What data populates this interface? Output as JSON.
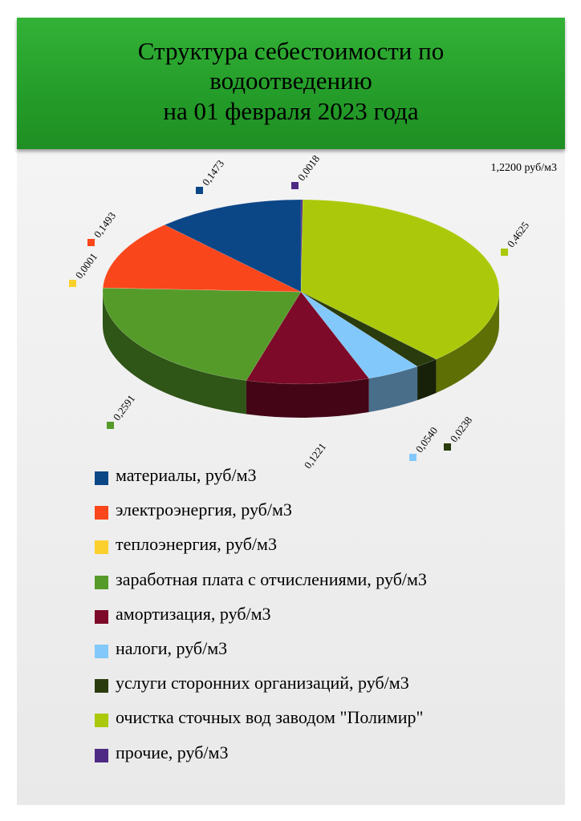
{
  "title": {
    "line1": "Структура себестоимости по",
    "line2": "водоотведению",
    "line3": "на 01 февраля 2023 года"
  },
  "total_label": "1,2200 руб/м3",
  "chart_data": {
    "type": "pie",
    "title": "Структура себестоимости по водоотведению на 01 февраля 2023 года",
    "total": "1,2200 руб/м3",
    "legend_position": "bottom",
    "slices": [
      {
        "name": "материалы, руб/м3",
        "value": 0.1473,
        "label": "0,1473",
        "color": "#0b4687"
      },
      {
        "name": "электроэнергия, руб/м3",
        "value": 0.1493,
        "label": "0,1493",
        "color": "#f9461b"
      },
      {
        "name": "теплоэнергия, руб/м3",
        "value": 0.0001,
        "label": "0,0001",
        "color": "#fbd02c"
      },
      {
        "name": "заработная плата с отчислениями, руб/м3",
        "value": 0.2591,
        "label": "0,2591",
        "color": "#559b2a"
      },
      {
        "name": "амортизация, руб/м3",
        "value": 0.1221,
        "label": "0,1221",
        "color": "#7c0a28"
      },
      {
        "name": "налоги, руб/м3",
        "value": 0.054,
        "label": "0,0540",
        "color": "#82c8fb"
      },
      {
        "name": "услуги сторонних организаций, руб/м3",
        "value": 0.0238,
        "label": "0,0238",
        "color": "#2a3b0e"
      },
      {
        "name": "очистка сточных вод заводом \"Полимир\"",
        "value": 0.4625,
        "label": "0,4625",
        "color": "#abc90a"
      },
      {
        "name": "прочие, руб/м3",
        "value": 0.0018,
        "label": "0,0018",
        "color": "#4e2a84"
      }
    ]
  }
}
